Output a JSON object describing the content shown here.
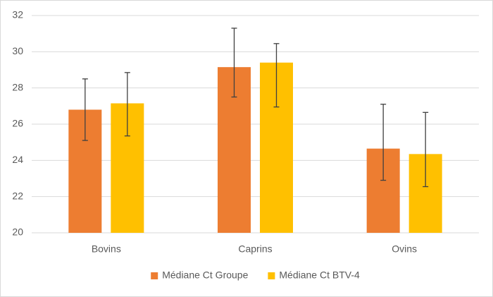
{
  "chart_data": {
    "type": "bar",
    "categories": [
      "Bovins",
      "Caprins",
      "Ovins"
    ],
    "series": [
      {
        "name": "Médiane Ct Groupe",
        "color": "#ED7D31",
        "values": [
          26.8,
          29.15,
          24.65
        ],
        "error_low": [
          1.7,
          1.65,
          1.75
        ],
        "error_high": [
          1.7,
          2.15,
          2.45
        ]
      },
      {
        "name": "Médiane Ct BTV-4",
        "color": "#FFC000",
        "values": [
          27.15,
          29.4,
          24.35
        ],
        "error_low": [
          1.8,
          2.45,
          1.8
        ],
        "error_high": [
          1.7,
          1.05,
          2.3
        ]
      }
    ],
    "ylim": [
      20,
      32
    ],
    "yticks": [
      20,
      22,
      24,
      26,
      28,
      30,
      32
    ],
    "grid": true,
    "legend": "bottom"
  }
}
